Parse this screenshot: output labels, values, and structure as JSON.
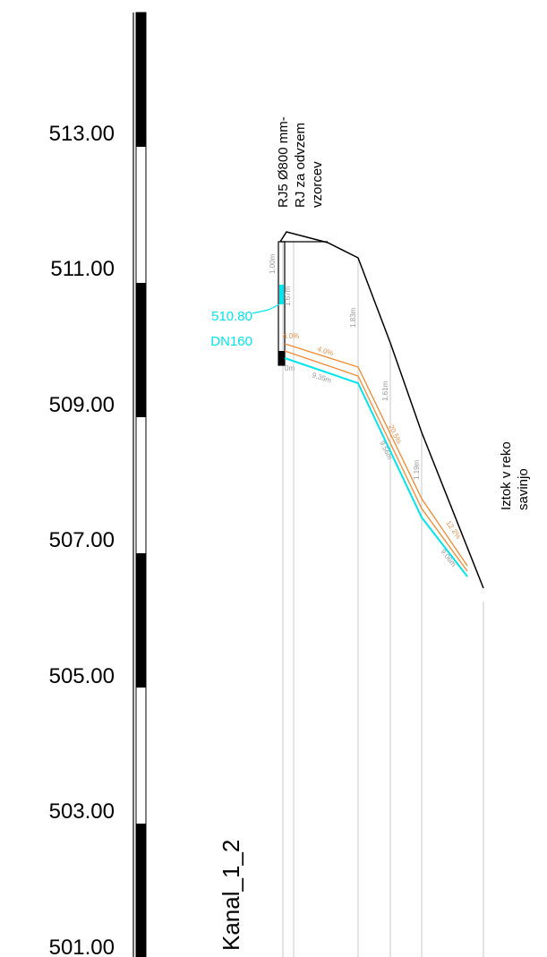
{
  "elevation_scale": {
    "labels": [
      "513.00",
      "511.00",
      "509.00",
      "507.00",
      "505.00",
      "503.00",
      "501.00"
    ]
  },
  "manhole": {
    "lines": [
      "RJ5 Ø800 mm-",
      "RJ za odvzem",
      "vzorcev"
    ]
  },
  "connection": {
    "elevation": "510.80",
    "pipe": "DN160"
  },
  "outlet": {
    "lines": [
      "Iztok v reko",
      "savinjo"
    ]
  },
  "segments": {
    "slope_1": "4.0%",
    "slope_1_left": "4.0%",
    "length_1": "9.35m",
    "length_start": "0m",
    "slope_2": "20.5%",
    "length_2": "9.56m",
    "slope_3": "12.2%",
    "length_3": "9.06m"
  },
  "depths": {
    "d0": "1.00m",
    "d0b": "1.67m",
    "d1": "1.83m",
    "d2": "1.61m",
    "d3": "1.19m"
  },
  "profile": {
    "name": "Kanal_1_2"
  },
  "colors": {
    "terrain": "#000000",
    "pipe_top": "#f08a30",
    "pipe_bottom": "#00e5ee",
    "grid": "#bbbbbb"
  }
}
